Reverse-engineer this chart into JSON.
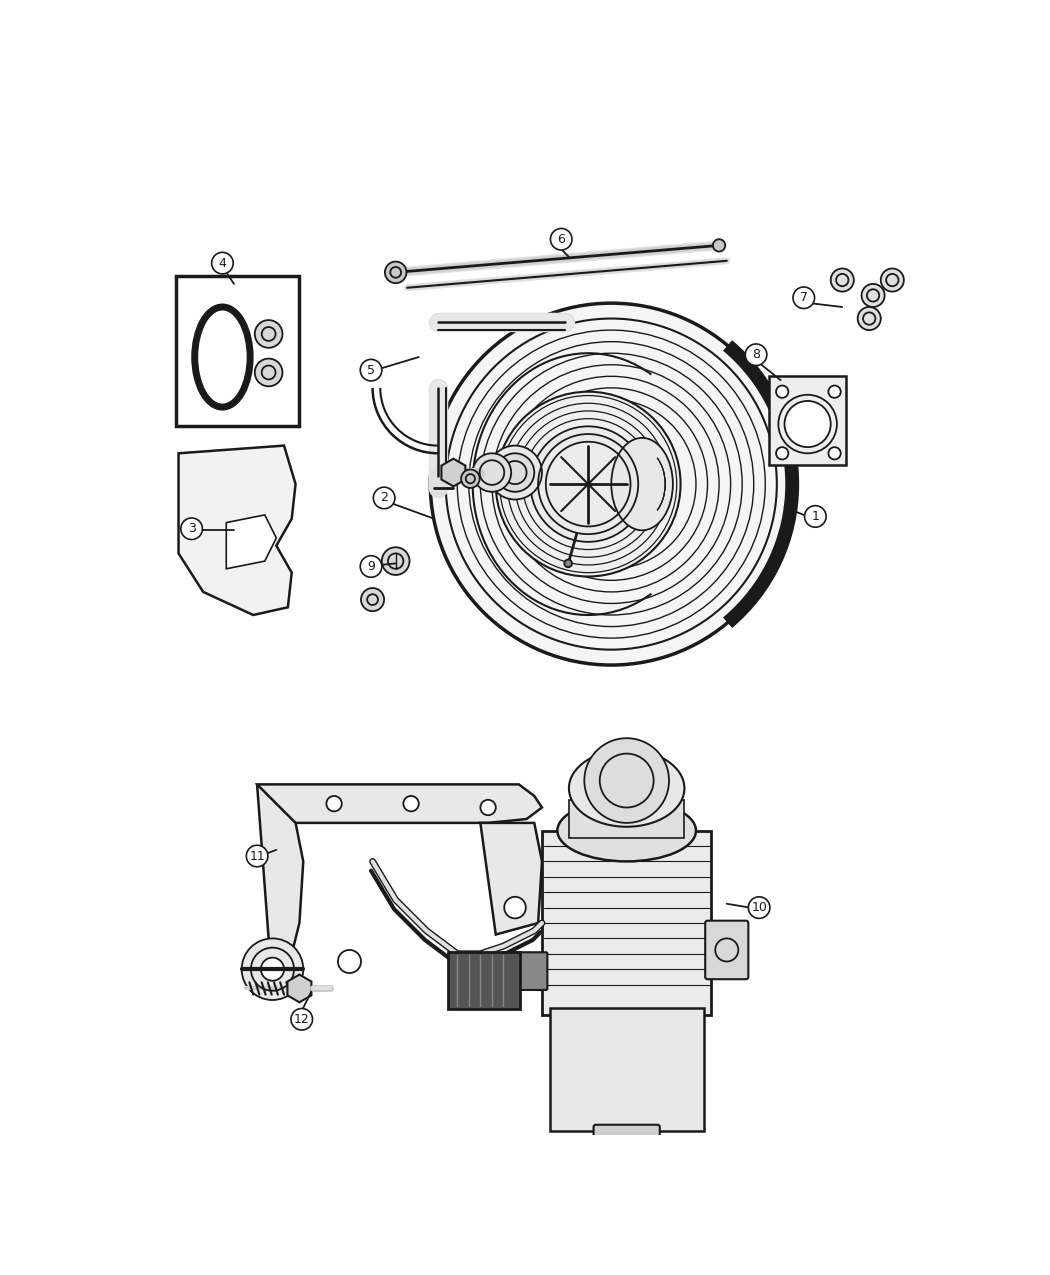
{
  "bg_color": "#ffffff",
  "line_color": "#1a1a1a",
  "fig_width": 10.5,
  "fig_height": 12.75,
  "dpi": 100
}
